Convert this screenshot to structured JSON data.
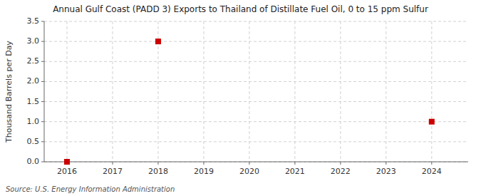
{
  "chart_data": {
    "type": "scatter",
    "title": "Annual Gulf Coast (PADD 3) Exports to Thailand of Distillate Fuel Oil, 0 to 15 ppm Sulfur",
    "y_label": "Thousand Barrels per Day",
    "source": "Source: U.S. Energy Information Administration",
    "x": [
      2016,
      2018,
      2024
    ],
    "values": [
      0.0,
      3.0,
      1.0
    ],
    "color": "#cc0000",
    "marker": "square",
    "xlim": [
      2015.5,
      2024.8
    ],
    "ylim": [
      0.0,
      3.5
    ],
    "xticks": [
      2016,
      2017,
      2018,
      2019,
      2020,
      2021,
      2022,
      2023,
      2024
    ],
    "yticks": [
      {
        "value": 0,
        "label": "0.0"
      },
      0.5,
      {
        "value": 1,
        "label": "1.0"
      },
      1.5,
      {
        "value": 2,
        "label": "2.0"
      },
      2.5,
      {
        "value": 3,
        "label": "3.0"
      },
      3.5
    ],
    "grid": true
  }
}
